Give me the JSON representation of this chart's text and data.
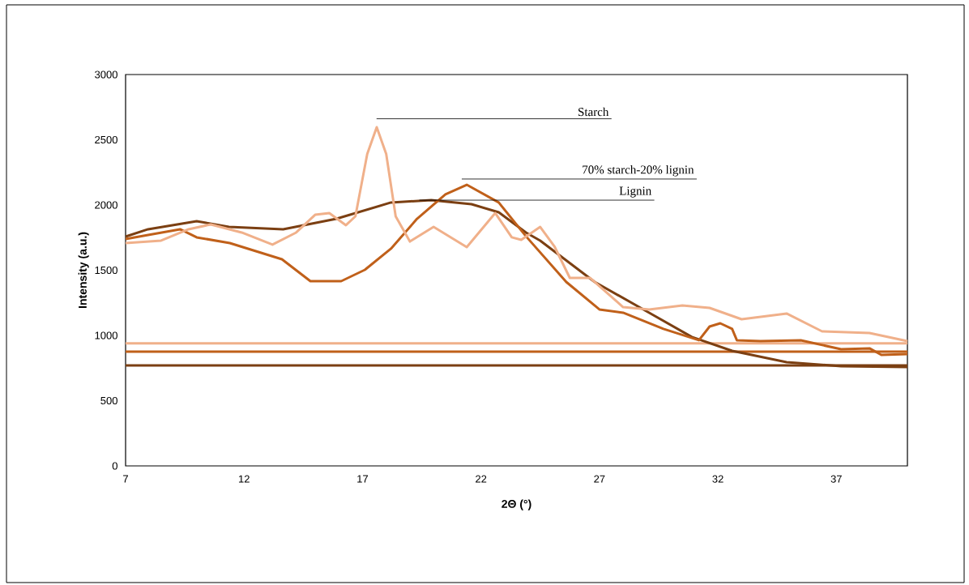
{
  "chart_data": {
    "type": "line",
    "xlabel": "2Θ (°)",
    "ylabel": "Intensity (a.u.)",
    "xlim": [
      7,
      40
    ],
    "xticks": [
      7,
      12,
      17,
      22,
      27,
      32,
      37
    ],
    "ylim": [
      0,
      3000
    ],
    "yticks": [
      0,
      500,
      1000,
      1500,
      2000,
      2500,
      3000
    ],
    "series": [
      {
        "color": "#7b3f12",
        "x": [
          7,
          7.95,
          10.0,
          11.36,
          13.65,
          15.9,
          18.2,
          19.9,
          21.6,
          22.75,
          23.9,
          24.5,
          26.8,
          29.1,
          30.9,
          32.6,
          34.9,
          37.2,
          40
        ],
        "values": [
          1758,
          1814,
          1876,
          1832,
          1814,
          1894,
          2019,
          2037,
          2006,
          1944,
          1789,
          1727,
          1410,
          1174,
          988,
          882,
          795,
          764,
          758
        ]
      },
      {
        "color": "#c0601a",
        "x": [
          7,
          7.95,
          9.3,
          10.0,
          11.4,
          12.5,
          13.6,
          14.8,
          16.1,
          17.1,
          18.2,
          19.3,
          20.5,
          21.4,
          22.75,
          23.9,
          25.6,
          27.0,
          28.0,
          29.7,
          31.2,
          31.65,
          32.1,
          32.6,
          32.8,
          33.8,
          35.5,
          37.2,
          38.4,
          38.9,
          40
        ],
        "values": [
          1739,
          1770,
          1814,
          1752,
          1708,
          1646,
          1584,
          1416,
          1416,
          1503,
          1665,
          1894,
          2081,
          2155,
          2019,
          1760,
          1410,
          1199,
          1174,
          1050,
          963,
          1068,
          1093,
          1050,
          963,
          957,
          963,
          894,
          901,
          851,
          857
        ]
      },
      {
        "color": "#f0b08a",
        "x": [
          7,
          8.5,
          9.66,
          10.6,
          11.9,
          13.2,
          14.2,
          15.0,
          15.6,
          16.3,
          16.7,
          17.2,
          17.6,
          18.0,
          18.4,
          19.0,
          20.0,
          21.4,
          22.6,
          23.3,
          23.7,
          24.5,
          25.1,
          25.75,
          26.6,
          28.0,
          29.1,
          30.5,
          31.65,
          33.0,
          34.9,
          36.4,
          38.4,
          40
        ],
        "values": [
          1708,
          1727,
          1814,
          1851,
          1789,
          1696,
          1789,
          1925,
          1938,
          1845,
          1913,
          2391,
          2596,
          2391,
          1913,
          1720,
          1832,
          1677,
          1938,
          1752,
          1733,
          1832,
          1683,
          1441,
          1441,
          1217,
          1199,
          1230,
          1211,
          1124,
          1168,
          1031,
          1019,
          957
        ]
      }
    ],
    "ref_lines": [
      {
        "axis": "y",
        "value": 940,
        "color": "#f0b08a"
      },
      {
        "axis": "y",
        "value": 875,
        "color": "#c0601a"
      },
      {
        "axis": "y",
        "value": 770,
        "color": "#7b3f12"
      }
    ],
    "annotations": [
      "Starch",
      "70% starch-20% lignin",
      {
        "text": "Lignin",
        "x": 19.4,
        "y": 2037
      }
    ]
  }
}
